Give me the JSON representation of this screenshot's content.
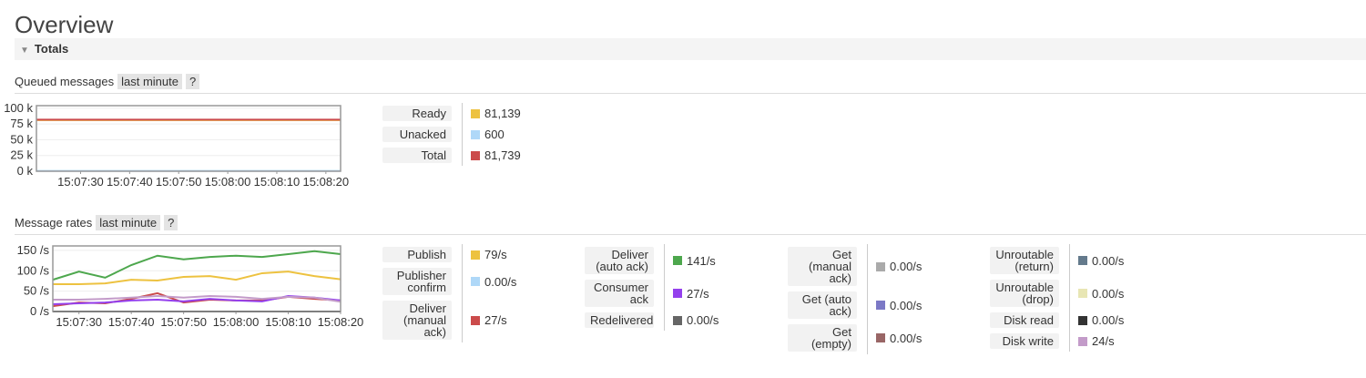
{
  "title": "Overview",
  "section": "Totals",
  "chart_data": [
    {
      "type": "line",
      "title": "Queued messages",
      "range": "last minute",
      "help": "?",
      "x": [
        "15:07:21",
        "15:08:23"
      ],
      "xlim": [
        "15:07:21",
        "15:08:23"
      ],
      "xticks": [
        "15:07:30",
        "15:07:40",
        "15:07:50",
        "15:08:00",
        "15:08:10",
        "15:08:20"
      ],
      "ylim": [
        0,
        104000
      ],
      "yticks": [
        {
          "value": 0,
          "label": "0 k"
        },
        {
          "value": 25000,
          "label": "25 k"
        },
        {
          "value": 50000,
          "label": "50 k"
        },
        {
          "value": 75000,
          "label": "75 k"
        },
        {
          "value": 100000,
          "label": "100 k"
        }
      ],
      "grid": true,
      "series": [
        {
          "name": "Ready",
          "color": "#edc240",
          "values": [
            81139,
            81139
          ],
          "value_label": "81,139"
        },
        {
          "name": "Unacked",
          "color": "#afd8f8",
          "values": [
            600,
            600
          ],
          "value_label": "600"
        },
        {
          "name": "Total",
          "color": "#cb4b4b",
          "values": [
            81739,
            81739
          ],
          "value_label": "81,739"
        }
      ]
    },
    {
      "type": "line",
      "title": "Message rates",
      "range": "last minute",
      "help": "?",
      "x": [
        "15:07:25",
        "15:07:30",
        "15:07:35",
        "15:07:40",
        "15:07:45",
        "15:07:50",
        "15:07:55",
        "15:08:00",
        "15:08:05",
        "15:08:10",
        "15:08:15",
        "15:08:20"
      ],
      "xlim": [
        "15:07:25",
        "15:08:20"
      ],
      "xticks": [
        "15:07:30",
        "15:07:40",
        "15:07:50",
        "15:08:00",
        "15:08:10",
        "15:08:20"
      ],
      "ylim": [
        0,
        161
      ],
      "yticks": [
        {
          "value": 0,
          "label": "0 /s"
        },
        {
          "value": 50,
          "label": "50 /s"
        },
        {
          "value": 100,
          "label": "100 /s"
        },
        {
          "value": 150,
          "label": "150 /s"
        }
      ],
      "grid": true,
      "series": [
        {
          "name": "Publish",
          "color": "#edc240",
          "values": [
            67,
            67,
            69,
            78,
            76,
            85,
            87,
            78,
            94,
            98,
            87,
            79
          ],
          "value_label": "79/s"
        },
        {
          "name": "Publisher confirm",
          "color": "#afd8f8",
          "values": [
            0,
            0,
            0,
            0,
            0,
            0,
            0,
            0,
            0,
            0,
            0,
            0
          ],
          "value_label": "0.00/s"
        },
        {
          "name": "Deliver (manual ack)",
          "color": "#cb4b4b",
          "values": [
            13,
            22,
            20,
            31,
            45,
            22,
            29,
            27,
            27,
            36,
            31,
            27
          ],
          "value_label": "27/s"
        },
        {
          "name": "Deliver (auto ack)",
          "color": "#4da74d",
          "values": [
            78,
            98,
            83,
            114,
            137,
            128,
            134,
            137,
            134,
            141,
            148,
            141
          ],
          "value_label": "141/s"
        },
        {
          "name": "Consumer ack",
          "color": "#9440ed",
          "values": [
            18,
            20,
            22,
            27,
            29,
            25,
            31,
            27,
            25,
            38,
            34,
            27
          ],
          "value_label": "27/s"
        },
        {
          "name": "Redelivered",
          "color": "#666666",
          "values": [
            0,
            0,
            0,
            0,
            0,
            0,
            0,
            0,
            0,
            0,
            0,
            0
          ],
          "value_label": "0.00/s"
        },
        {
          "name": "Get (manual ack)",
          "color": "#aaaaaa",
          "values": [
            0,
            0,
            0,
            0,
            0,
            0,
            0,
            0,
            0,
            0,
            0,
            0
          ],
          "value_label": "0.00/s"
        },
        {
          "name": "Get (auto ack)",
          "color": "#7c79c6",
          "values": [
            0,
            0,
            0,
            0,
            0,
            0,
            0,
            0,
            0,
            0,
            0,
            0
          ],
          "value_label": "0.00/s"
        },
        {
          "name": "Get (empty)",
          "color": "#996666",
          "values": [
            0,
            0,
            0,
            0,
            0,
            0,
            0,
            0,
            0,
            0,
            0,
            0
          ],
          "value_label": "0.00/s"
        },
        {
          "name": "Unroutable (return)",
          "color": "#647a8c",
          "values": [
            0,
            0,
            0,
            0,
            0,
            0,
            0,
            0,
            0,
            0,
            0,
            0
          ],
          "value_label": "0.00/s"
        },
        {
          "name": "Unroutable (drop)",
          "color": "#e8e6b4",
          "values": [
            0,
            0,
            0,
            0,
            0,
            0,
            0,
            0,
            0,
            0,
            0,
            0
          ],
          "value_label": "0.00/s"
        },
        {
          "name": "Disk read",
          "color": "#333333",
          "values": [
            0,
            0,
            0,
            0,
            0,
            0,
            0,
            0,
            0,
            0,
            0,
            0
          ],
          "value_label": "0.00/s"
        },
        {
          "name": "Disk write",
          "color": "#c39bc9",
          "values": [
            29,
            29,
            31,
            34,
            38,
            34,
            38,
            36,
            31,
            36,
            34,
            24
          ],
          "value_label": "24/s"
        }
      ]
    }
  ]
}
